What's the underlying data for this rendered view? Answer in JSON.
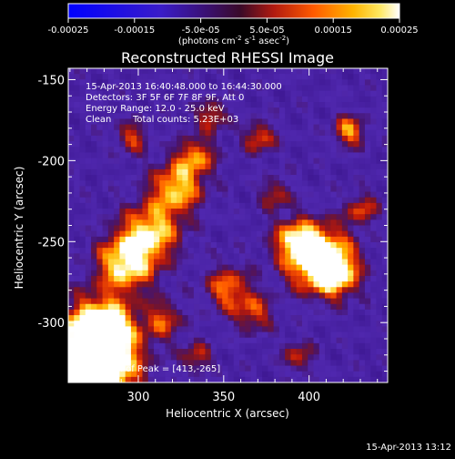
{
  "chart_data": {
    "type": "heatmap",
    "title": "Reconstructed RHESSI Image",
    "xlabel": "Heliocentric X (arcsec)",
    "ylabel": "Heliocentric Y (arcsec)",
    "xlim": [
      259,
      446
    ],
    "ylim": [
      -337,
      -143
    ],
    "xticks": [
      300,
      350,
      400
    ],
    "yticks": [
      -150,
      -200,
      -250,
      -300
    ],
    "colorbar": {
      "ticks": [
        "-0.00025",
        "-0.00015",
        "-5.0e-05",
        "5.0e-05",
        "0.00015",
        "0.00025"
      ],
      "range": [
        -0.00025,
        0.00025
      ],
      "unit_label": "(photons cm",
      "unit_exp1": "-2",
      "unit_mid": " s",
      "unit_exp2": "-1",
      "unit_mid2": " asec",
      "unit_exp3": "-2",
      "unit_close": ")"
    },
    "annotations": {
      "time_range": "15-Apr-2013 16:40:48.000 to 16:44:30.000",
      "detectors": "Detectors: 3F 5F 6F 7F 8F 9F, Att 0",
      "energy_range": "Energy Range: 12.0 - 25.0 keV",
      "clean_label": "Clean",
      "total_counts": "Total counts: 5.23E+03",
      "peak": "Position of Peak = [413,-265]"
    },
    "peak_position": [
      413,
      -265
    ],
    "timestamp": "15-Apr-2013 13:12",
    "grid": false
  }
}
